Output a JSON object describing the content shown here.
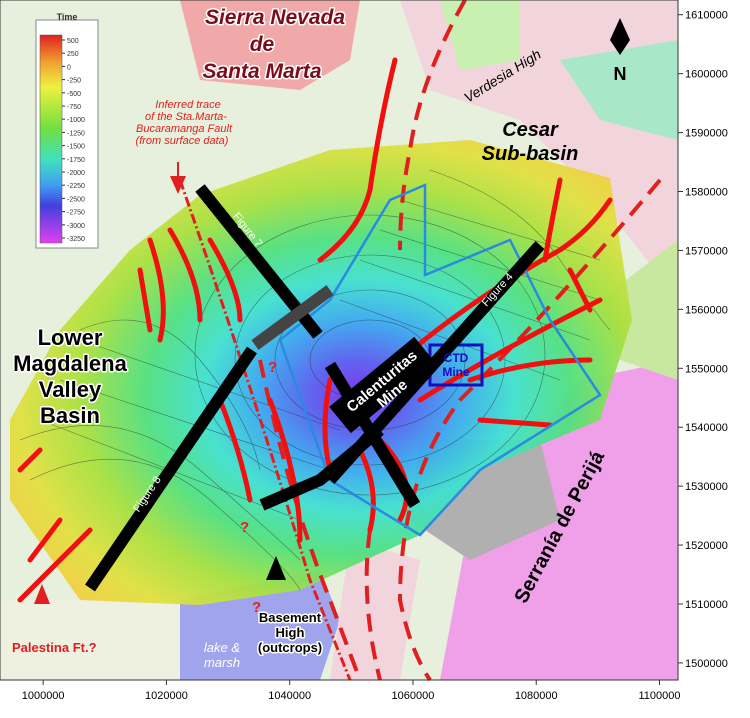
{
  "axes": {
    "xlim": [
      993000,
      1103000
    ],
    "ylim": [
      1497100,
      1612500
    ],
    "x_ticks": [
      1000000,
      1020000,
      1040000,
      1060000,
      1080000,
      1100000
    ],
    "y_ticks": [
      1610000,
      1600000,
      1590000,
      1580000,
      1570000,
      1560000,
      1550000,
      1540000,
      1530000,
      1520000,
      1510000,
      1500000
    ]
  },
  "colorbar": {
    "title": "Time",
    "ticks": [
      500,
      250,
      0,
      -250,
      -500,
      -750,
      -1000,
      -1250,
      -1500,
      -1750,
      -2000,
      -2250,
      -2500,
      -2750,
      -3000,
      -3250
    ]
  },
  "north": "N",
  "labels": {
    "sierra_nevada": [
      "Sierra Nevada",
      "de",
      "Santa Marta"
    ],
    "verdesia": "Verdesia High",
    "cesar": [
      "Cesar",
      "Sub-basin"
    ],
    "fault_note": [
      "Inferred trace",
      "of the Sta.Marta-",
      "Bucaramanga Fault",
      "(from surface data)"
    ],
    "lower_magdalena": [
      "Lower",
      "Magdalena",
      "Valley",
      "Basin"
    ],
    "calenturitas": [
      "Calenturitas",
      "Mine"
    ],
    "ctd_mine": [
      "CTD",
      "Mine"
    ],
    "perija": "Serranía de Perijá",
    "basement_high": [
      "Basement",
      "High",
      "(outcrops)"
    ],
    "lake": [
      "lake &",
      "marsh"
    ],
    "palestina": "Palestina Ft.?",
    "figure_7": "Figure 7",
    "figure_4": "Figure 4",
    "figure_8": "Figure 8",
    "question_marks": [
      "?",
      "?",
      "?"
    ]
  }
}
